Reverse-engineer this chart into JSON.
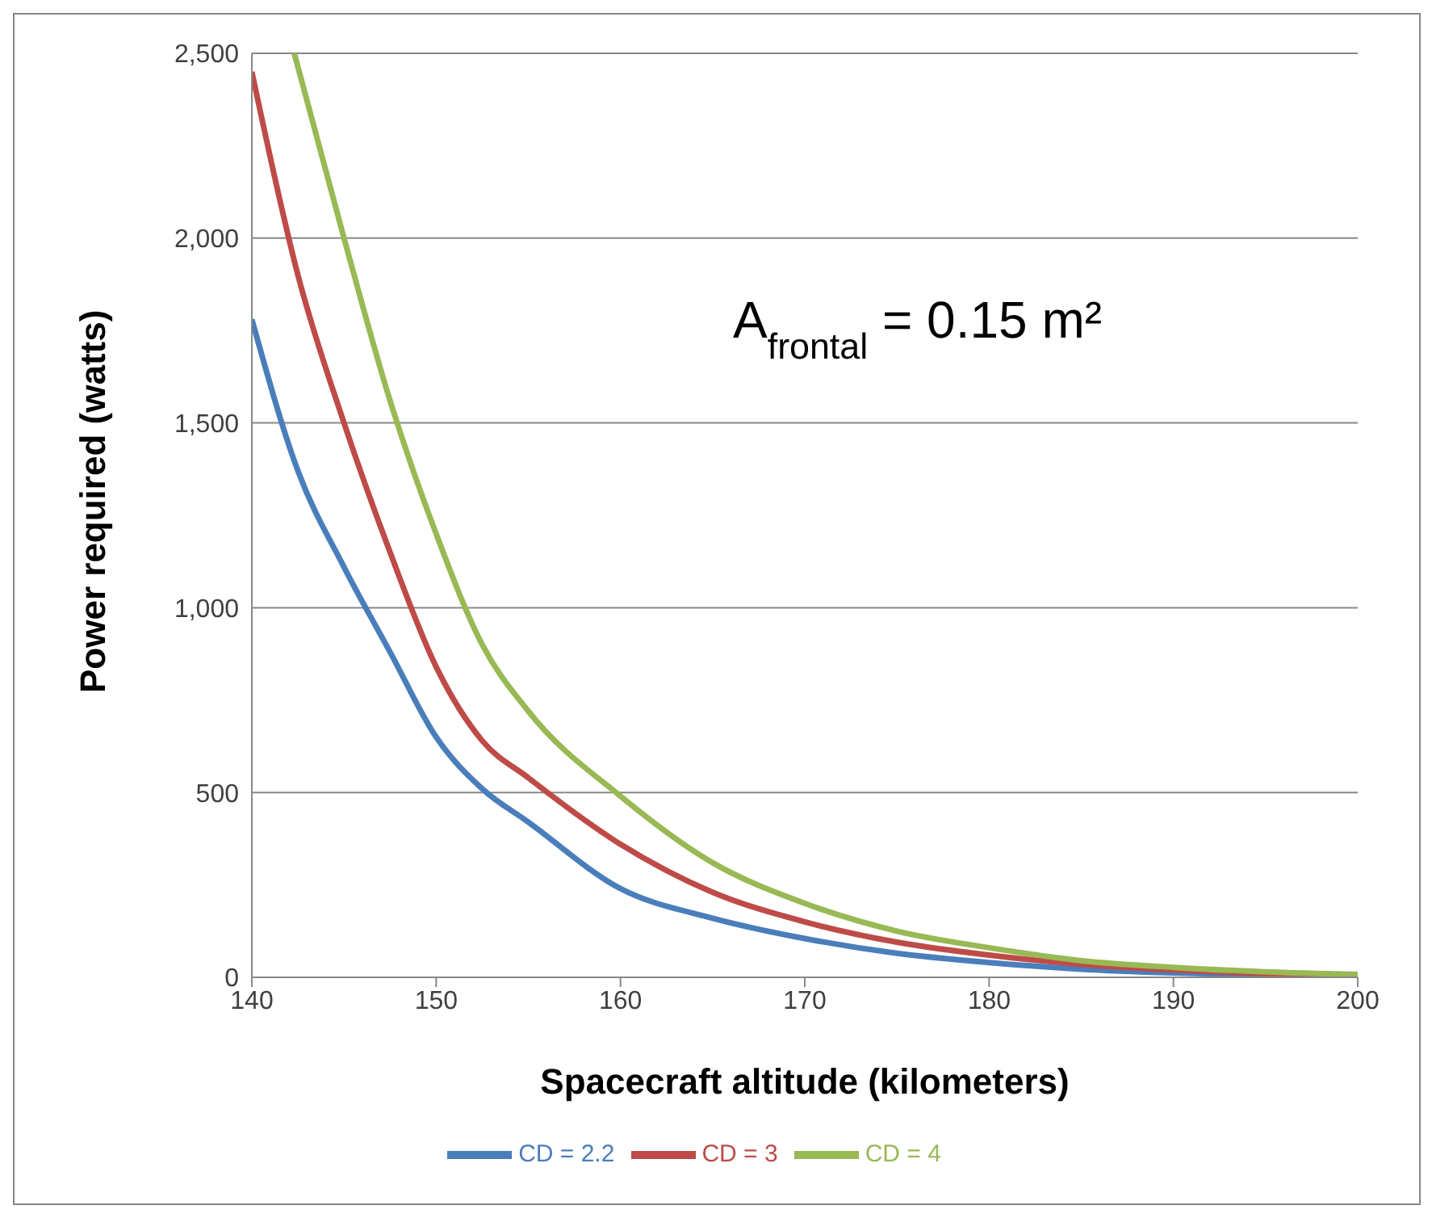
{
  "chart_data": {
    "type": "line",
    "xlabel": "Spacecraft altitude (kilometers)",
    "ylabel": "Power required (watts)",
    "annotations": [
      "A$_{frontal}$ = 0.15 m²"
    ],
    "xlim": [
      140,
      200
    ],
    "xticks": [
      140,
      150,
      160,
      170,
      180,
      190,
      200
    ],
    "ylim": [
      0,
      2500
    ],
    "yticks": [
      {
        "value": 0,
        "label": "0"
      },
      {
        "value": 500,
        "label": "500"
      },
      {
        "value": 1000,
        "label": "1,000"
      },
      {
        "value": 1500,
        "label": "1,500"
      },
      {
        "value": 2000,
        "label": "2,000"
      },
      {
        "value": 2500,
        "label": "2,500"
      }
    ],
    "grid": "y",
    "legend": "bottom",
    "marker": "none",
    "line_style": "solid",
    "series": [
      {
        "name": "CD =  2.2",
        "color": "#4a7ebb",
        "x": [
          140,
          142.5,
          145,
          147.5,
          150,
          152.5,
          155,
          160,
          165,
          170,
          175,
          180,
          185,
          190,
          195,
          200
        ],
        "values": [
          1780,
          1370,
          1110,
          880,
          650,
          510,
          420,
          240,
          160,
          105,
          65,
          40,
          22,
          12,
          6,
          3
        ]
      },
      {
        "name": "CD =  3",
        "color": "#be4b48",
        "x": [
          140,
          142.5,
          145,
          147.5,
          150,
          152.5,
          155,
          160,
          165,
          170,
          175,
          180,
          185,
          190,
          195,
          200
        ],
        "values": [
          2450,
          1900,
          1500,
          1150,
          840,
          640,
          540,
          360,
          230,
          150,
          95,
          60,
          35,
          20,
          10,
          5
        ]
      },
      {
        "name": "CD =  4",
        "color": "#98b954",
        "x": [
          142.3,
          145,
          147.5,
          150,
          152.5,
          155,
          160,
          165,
          170,
          175,
          180,
          185,
          190,
          195,
          200
        ],
        "values": [
          2500,
          2000,
          1560,
          1200,
          900,
          720,
          490,
          310,
          200,
          125,
          80,
          45,
          27,
          15,
          8
        ]
      }
    ]
  }
}
